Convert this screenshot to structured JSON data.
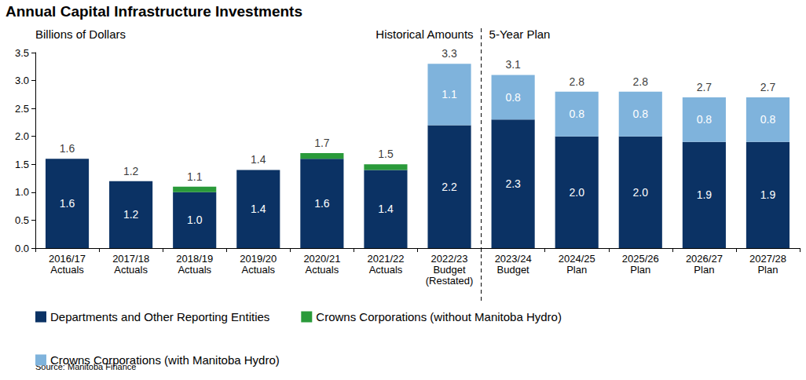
{
  "chart_data": {
    "type": "bar",
    "title": "Annual Capital Infrastructure Investments",
    "y_axis_label": "Billions of Dollars",
    "source": "Source: Manitoba Finance",
    "annotations": {
      "divider_after": "2022/23\nBudget\n(Restated)",
      "left_label": "Historical Amounts",
      "right_label": "5-Year Plan"
    },
    "categories": [
      "2016/17\nActuals",
      "2017/18\nActuals",
      "2018/19\nActuals",
      "2019/20\nActuals",
      "2020/21\nActuals",
      "2021/22\nActuals",
      "2022/23\nBudget\n(Restated)",
      "2023/24\nBudget",
      "2024/25\nPlan",
      "2025/26\nPlan",
      "2026/27\nPlan",
      "2027/28\nPlan"
    ],
    "series": [
      {
        "name": "Departments and Other Reporting Entities",
        "color": "#0b3264",
        "data_labels": true,
        "values": [
          1.6,
          1.2,
          1.0,
          1.4,
          1.6,
          1.4,
          2.2,
          2.3,
          2.0,
          2.0,
          1.9,
          1.9
        ],
        "value_labels": [
          "1.6",
          "1.2",
          "1.0",
          "1.4",
          "1.6",
          "1.4",
          "2.2",
          "2.3",
          "2.0",
          "2.0",
          "1.9",
          "1.9"
        ]
      },
      {
        "name": "Crowns Corporations (without Manitoba Hydro)",
        "color": "#2a9a3a",
        "data_labels": false,
        "values": [
          null,
          null,
          0.1,
          null,
          0.1,
          0.1,
          null,
          null,
          null,
          null,
          null,
          null
        ]
      },
      {
        "name": "Crowns Corporations (with Manitoba Hydro)",
        "color": "#7fb3dc",
        "data_labels": true,
        "values": [
          null,
          null,
          null,
          null,
          null,
          null,
          1.1,
          0.8,
          0.8,
          0.8,
          0.8,
          0.8
        ],
        "value_labels": [
          null,
          null,
          null,
          null,
          null,
          null,
          "1.1",
          "0.8",
          "0.8",
          "0.8",
          "0.8",
          "0.8"
        ]
      }
    ],
    "totals": [
      1.6,
      1.2,
      1.1,
      1.4,
      1.7,
      1.5,
      3.3,
      3.1,
      2.8,
      2.8,
      2.7,
      2.7
    ],
    "stacked": true,
    "data_labels": true,
    "grid": false,
    "legend": "bottom",
    "ylim": [
      0,
      3.5
    ],
    "yticks": [
      {
        "value": 0,
        "label": "0.0"
      },
      {
        "value": 0.5,
        "label": "0.5"
      },
      {
        "value": 1,
        "label": "1.0"
      },
      {
        "value": 1.5,
        "label": "1.5"
      },
      {
        "value": 2,
        "label": "2.0"
      },
      {
        "value": 2.5,
        "label": "2.5"
      },
      {
        "value": 3,
        "label": "3.0"
      },
      {
        "value": 3.5,
        "label": "3.5"
      }
    ]
  }
}
